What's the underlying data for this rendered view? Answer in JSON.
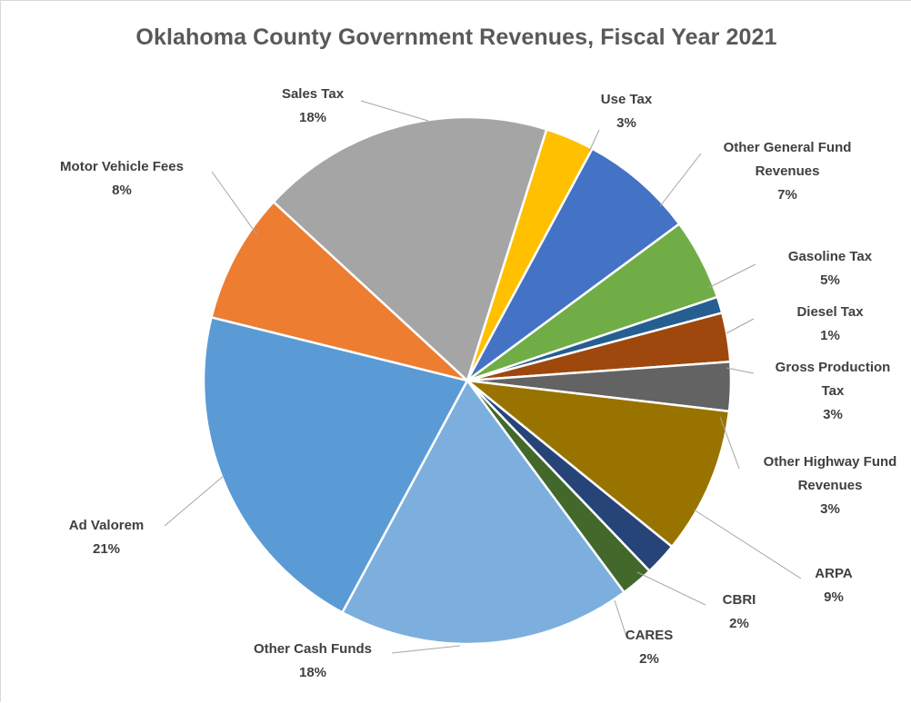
{
  "chart_data": {
    "type": "pie",
    "title": "Oklahoma County Government Revenues, Fiscal Year 2021",
    "slices": [
      {
        "name": "Use Tax",
        "value": 3,
        "label": "3%",
        "color": "#FFC000"
      },
      {
        "name": "Other General Fund Revenues",
        "value": 7,
        "label": "7%",
        "color": "#4472C4"
      },
      {
        "name": "Gasoline Tax",
        "value": 5,
        "label": "5%",
        "color": "#70AD47"
      },
      {
        "name": "Diesel Tax",
        "value": 1,
        "label": "1%",
        "color": "#255E91"
      },
      {
        "name": "Gross Production Tax",
        "value": 3,
        "label": "3%",
        "color": "#9E480E"
      },
      {
        "name": "Other Highway Fund Revenues",
        "value": 3,
        "label": "3%",
        "color": "#636363"
      },
      {
        "name": "ARPA",
        "value": 9,
        "label": "9%",
        "color": "#997300"
      },
      {
        "name": "CBRI",
        "value": 2,
        "label": "2%",
        "color": "#264478"
      },
      {
        "name": "CARES",
        "value": 2,
        "label": "2%",
        "color": "#43682B"
      },
      {
        "name": "Other Cash Funds",
        "value": 18,
        "label": "18%",
        "color": "#7CAFDD"
      },
      {
        "name": "Ad Valorem",
        "value": 21,
        "label": "21%",
        "color": "#5B9BD5"
      },
      {
        "name": "Motor Vehicle Fees",
        "value": 8,
        "label": "8%",
        "color": "#ED7D31"
      },
      {
        "name": "Sales Tax",
        "value": 18,
        "label": "18%",
        "color": "#A5A5A5"
      }
    ]
  }
}
